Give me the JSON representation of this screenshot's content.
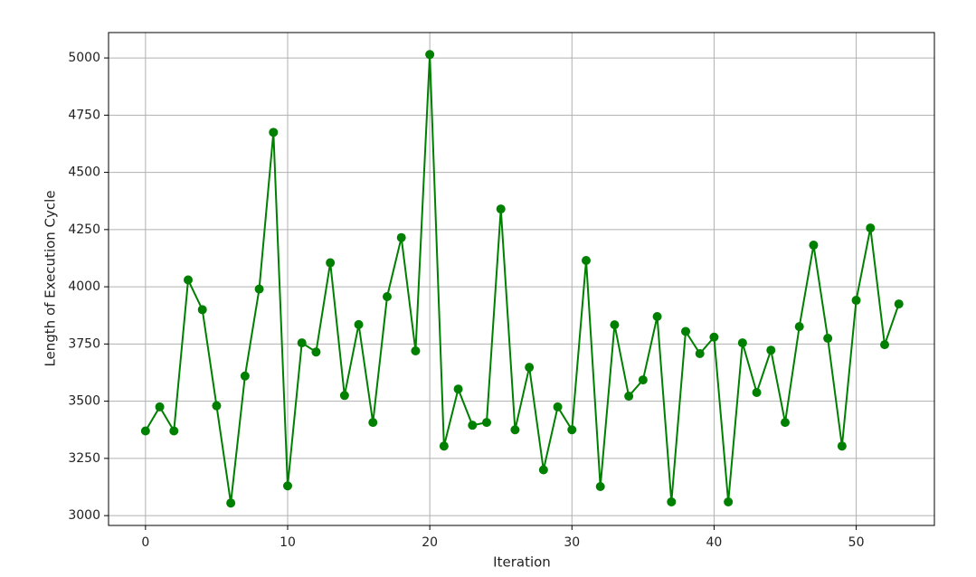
{
  "chart_data": {
    "type": "line",
    "xlabel": "Iteration",
    "ylabel": "Length of Execution Cycle",
    "x": [
      0,
      1,
      2,
      3,
      4,
      5,
      6,
      7,
      8,
      9,
      10,
      11,
      12,
      13,
      14,
      15,
      16,
      17,
      18,
      19,
      20,
      21,
      22,
      23,
      24,
      25,
      26,
      27,
      28,
      29,
      30,
      31,
      32,
      33,
      34,
      35,
      36,
      37,
      38,
      39,
      40,
      41,
      42,
      43,
      44,
      45,
      46,
      47,
      48,
      49,
      50,
      51,
      52,
      53
    ],
    "series": [
      {
        "color": "#008000",
        "values": [
          3370,
          3475,
          3370,
          4030,
          3900,
          3480,
          3055,
          3610,
          3990,
          4675,
          3130,
          3755,
          3715,
          4105,
          3525,
          3835,
          3407,
          3957,
          4215,
          3720,
          5015,
          3304,
          3553,
          3395,
          3407,
          4340,
          3375,
          3648,
          3200,
          3475,
          3375,
          4115,
          3127,
          3834,
          3522,
          3593,
          3870,
          3060,
          3805,
          3708,
          3780,
          3060,
          3755,
          3538,
          3723,
          3407,
          3826,
          4182,
          3775,
          3304,
          3941,
          4257,
          3747,
          3925
        ]
      }
    ],
    "xlim": [
      -2.6,
      55.5
    ],
    "ylim": [
      2957,
      5111
    ],
    "xticks": [
      0,
      10,
      20,
      30,
      40,
      50
    ],
    "yticks": [
      3000,
      3250,
      3500,
      3750,
      4000,
      4250,
      4500,
      4750,
      5000
    ],
    "grid": true
  }
}
